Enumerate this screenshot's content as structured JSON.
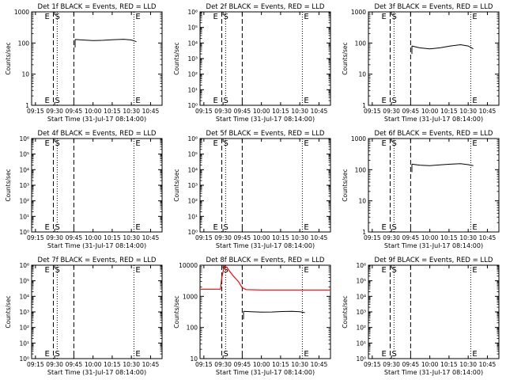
{
  "chart_data": [
    {
      "type": "line",
      "title": "Det 1f BLACK = Events, RED = LLD",
      "xlabel": "Start Time (31-Jul-17 08:14:00)",
      "ylabel": "Counts/sec",
      "yscale": "log",
      "xlim": [
        "09:12",
        "10:54"
      ],
      "ylim": [
        1,
        1000
      ],
      "yticks": [
        "1",
        "10",
        "100",
        "1000"
      ],
      "xticks": [
        "09:15",
        "09:30",
        "09:45",
        "10:00",
        "10:15",
        "10:30",
        "10:45"
      ],
      "markers": [
        {
          "time": "09:21",
          "label": "E"
        },
        {
          "time": "09:29",
          "label": "S"
        },
        {
          "time": "10:32",
          "label": "E"
        }
      ],
      "dashed_lines": [
        "09:29",
        "09:45"
      ],
      "dotted_lines": [
        "09:32",
        "10:32"
      ],
      "series": [
        {
          "color": "#000000",
          "x": [
            "09:46",
            "09:52",
            "10:00",
            "10:08",
            "10:16",
            "10:24",
            "10:30",
            "10:34"
          ],
          "y": [
            130,
            125,
            120,
            122,
            128,
            132,
            125,
            110
          ]
        }
      ]
    },
    {
      "type": "line",
      "title": "Det 2f BLACK = Events, RED = LLD",
      "xlabel": "Start Time (31-Jul-17 08:14:00)",
      "ylabel": "Counts/sec",
      "yscale": "log",
      "xlim": [
        "09:12",
        "10:54"
      ],
      "ylim": [
        1,
        1000000
      ],
      "yticks": [
        "10⁰",
        "10¹",
        "10²",
        "10³",
        "10⁴",
        "10⁵",
        "10⁶"
      ],
      "xticks": [
        "09:15",
        "09:30",
        "09:45",
        "10:00",
        "10:15",
        "10:30",
        "10:45"
      ],
      "markers": [
        {
          "time": "09:21",
          "label": "E"
        },
        {
          "time": "09:29",
          "label": "S"
        },
        {
          "time": "10:32",
          "label": "E"
        }
      ],
      "dashed_lines": [
        "09:29",
        "09:45"
      ],
      "dotted_lines": [
        "09:32",
        "10:32"
      ],
      "series": []
    },
    {
      "type": "line",
      "title": "Det 3f BLACK = Events, RED = LLD",
      "xlabel": "Start Time (31-Jul-17 08:14:00)",
      "ylabel": "Counts/sec",
      "yscale": "log",
      "xlim": [
        "09:12",
        "10:54"
      ],
      "ylim": [
        1,
        1000
      ],
      "yticks": [
        "1",
        "10",
        "100",
        "1000"
      ],
      "xticks": [
        "09:15",
        "09:30",
        "09:45",
        "10:00",
        "10:15",
        "10:30",
        "10:45"
      ],
      "markers": [
        {
          "time": "09:21",
          "label": "E"
        },
        {
          "time": "09:29",
          "label": "S"
        },
        {
          "time": "10:32",
          "label": "E"
        }
      ],
      "dashed_lines": [
        "09:29",
        "09:45"
      ],
      "dotted_lines": [
        "09:32",
        "10:32"
      ],
      "series": [
        {
          "color": "#000000",
          "x": [
            "09:46",
            "09:52",
            "10:00",
            "10:08",
            "10:16",
            "10:24",
            "10:30",
            "10:34"
          ],
          "y": [
            80,
            70,
            65,
            70,
            80,
            88,
            80,
            65
          ]
        }
      ]
    },
    {
      "type": "line",
      "title": "Det 4f BLACK = Events, RED = LLD",
      "xlabel": "Start Time (31-Jul-17 08:14:00)",
      "ylabel": "Counts/sec",
      "yscale": "log",
      "xlim": [
        "09:12",
        "10:54"
      ],
      "ylim": [
        1,
        1000000
      ],
      "yticks": [
        "10⁰",
        "10¹",
        "10²",
        "10³",
        "10⁴",
        "10⁵",
        "10⁶"
      ],
      "xticks": [
        "09:15",
        "09:30",
        "09:45",
        "10:00",
        "10:15",
        "10:30",
        "10:45"
      ],
      "markers": [
        {
          "time": "09:21",
          "label": "E"
        },
        {
          "time": "09:29",
          "label": "S"
        },
        {
          "time": "10:32",
          "label": "E"
        }
      ],
      "dashed_lines": [
        "09:29",
        "09:45"
      ],
      "dotted_lines": [
        "09:32",
        "10:32"
      ],
      "series": []
    },
    {
      "type": "line",
      "title": "Det 5f BLACK = Events, RED = LLD",
      "xlabel": "Start Time (31-Jul-17 08:14:00)",
      "ylabel": "Counts/sec",
      "yscale": "log",
      "xlim": [
        "09:12",
        "10:54"
      ],
      "ylim": [
        1,
        1000000
      ],
      "yticks": [
        "10⁰",
        "10¹",
        "10²",
        "10³",
        "10⁴",
        "10⁵",
        "10⁶"
      ],
      "xticks": [
        "09:15",
        "09:30",
        "09:45",
        "10:00",
        "10:15",
        "10:30",
        "10:45"
      ],
      "markers": [
        {
          "time": "09:21",
          "label": "E"
        },
        {
          "time": "09:29",
          "label": "S"
        },
        {
          "time": "10:32",
          "label": "E"
        }
      ],
      "dashed_lines": [
        "09:29",
        "09:45"
      ],
      "dotted_lines": [
        "09:32",
        "10:32"
      ],
      "series": []
    },
    {
      "type": "line",
      "title": "Det 6f BLACK = Events, RED = LLD",
      "xlabel": "Start Time (31-Jul-17 08:14:00)",
      "ylabel": "Counts/sec",
      "yscale": "log",
      "xlim": [
        "09:12",
        "10:54"
      ],
      "ylim": [
        1,
        1000
      ],
      "yticks": [
        "1",
        "10",
        "100",
        "1000"
      ],
      "xticks": [
        "09:15",
        "09:30",
        "09:45",
        "10:00",
        "10:15",
        "10:30",
        "10:45"
      ],
      "markers": [
        {
          "time": "09:21",
          "label": "E"
        },
        {
          "time": "09:29",
          "label": "S"
        },
        {
          "time": "10:32",
          "label": "E"
        }
      ],
      "dashed_lines": [
        "09:29",
        "09:45"
      ],
      "dotted_lines": [
        "09:32",
        "10:32"
      ],
      "series": [
        {
          "color": "#000000",
          "x": [
            "09:46",
            "09:52",
            "10:00",
            "10:08",
            "10:16",
            "10:24",
            "10:30",
            "10:34"
          ],
          "y": [
            150,
            140,
            135,
            142,
            150,
            155,
            145,
            135
          ]
        }
      ]
    },
    {
      "type": "line",
      "title": "Det 7f BLACK = Events, RED = LLD",
      "xlabel": "Start Time (31-Jul-17 08:14:00)",
      "ylabel": "Counts/sec",
      "yscale": "log",
      "xlim": [
        "09:12",
        "10:54"
      ],
      "ylim": [
        1,
        1000000
      ],
      "yticks": [
        "10⁰",
        "10¹",
        "10²",
        "10³",
        "10⁴",
        "10⁵",
        "10⁶"
      ],
      "xticks": [
        "09:15",
        "09:30",
        "09:45",
        "10:00",
        "10:15",
        "10:30",
        "10:45"
      ],
      "markers": [
        {
          "time": "09:21",
          "label": "E"
        },
        {
          "time": "09:29",
          "label": "S"
        },
        {
          "time": "10:32",
          "label": "E"
        }
      ],
      "dashed_lines": [
        "09:29",
        "09:45"
      ],
      "dotted_lines": [
        "09:32",
        "10:32"
      ],
      "series": []
    },
    {
      "type": "line",
      "title": "Det 8f BLACK = Events, RED = LLD",
      "xlabel": "Start Time (31-Jul-17 08:14:00)",
      "ylabel": "Counts/sec",
      "yscale": "log",
      "xlim": [
        "09:12",
        "10:54"
      ],
      "ylim": [
        10,
        10000
      ],
      "yticks": [
        "10",
        "100",
        "1000",
        "10000"
      ],
      "xticks": [
        "09:15",
        "09:30",
        "09:45",
        "10:00",
        "10:15",
        "10:30",
        "10:45"
      ],
      "markers": [
        {
          "time": "09:29",
          "label": "S"
        },
        {
          "time": "10:32",
          "label": "E"
        }
      ],
      "dashed_lines": [
        "09:29",
        "09:45"
      ],
      "dotted_lines": [
        "09:32",
        "10:32"
      ],
      "series": [
        {
          "color": "#ff0000",
          "x": [
            "09:12",
            "09:28",
            "09:29",
            "09:31",
            "09:33",
            "09:35",
            "09:38",
            "09:42",
            "09:45",
            "09:48",
            "10:00",
            "10:30",
            "10:54"
          ],
          "y": [
            1700,
            1700,
            4000,
            9500,
            8500,
            6500,
            4500,
            3000,
            1900,
            1650,
            1600,
            1600,
            1600
          ]
        },
        {
          "color": "#000000",
          "x": [
            "09:46",
            "09:52",
            "10:00",
            "10:08",
            "10:16",
            "10:24",
            "10:30",
            "10:34"
          ],
          "y": [
            330,
            320,
            310,
            315,
            325,
            330,
            320,
            300
          ]
        }
      ]
    },
    {
      "type": "line",
      "title": "Det 9f BLACK = Events, RED = LLD",
      "xlabel": "Start Time (31-Jul-17 08:14:00)",
      "ylabel": "Counts/sec",
      "yscale": "log",
      "xlim": [
        "09:12",
        "10:54"
      ],
      "ylim": [
        1,
        1000000
      ],
      "yticks": [
        "10⁰",
        "10¹",
        "10²",
        "10³",
        "10⁴",
        "10⁵",
        "10⁶"
      ],
      "xticks": [
        "09:15",
        "09:30",
        "09:45",
        "10:00",
        "10:15",
        "10:30",
        "10:45"
      ],
      "markers": [
        {
          "time": "09:21",
          "label": "E"
        },
        {
          "time": "09:29",
          "label": "S"
        },
        {
          "time": "10:32",
          "label": "E"
        }
      ],
      "dashed_lines": [
        "09:29",
        "09:45"
      ],
      "dotted_lines": [
        "09:32",
        "10:32"
      ],
      "series": []
    }
  ]
}
